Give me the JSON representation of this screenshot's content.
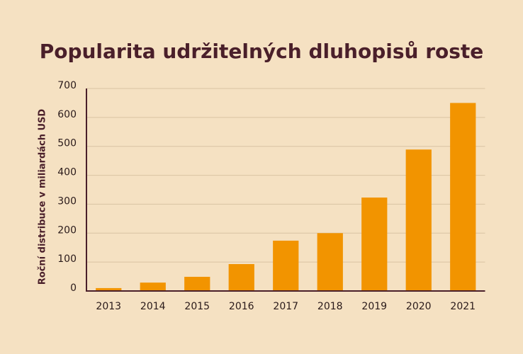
{
  "chart_data": {
    "type": "bar",
    "title": "Popularita udržitelných dluhopisů roste",
    "y_label": "Roční distribuce v miliardách USD",
    "categories": [
      "2013",
      "2014",
      "2015",
      "2016",
      "2017",
      "2018",
      "2019",
      "2020",
      "2021"
    ],
    "values": [
      10,
      29,
      49,
      93,
      174,
      200,
      323,
      489,
      650
    ],
    "color": "#f29400",
    "ylim": [
      0,
      700
    ],
    "yticks": [
      0,
      100,
      200,
      300,
      400,
      500,
      600,
      700
    ],
    "grid": true
  }
}
